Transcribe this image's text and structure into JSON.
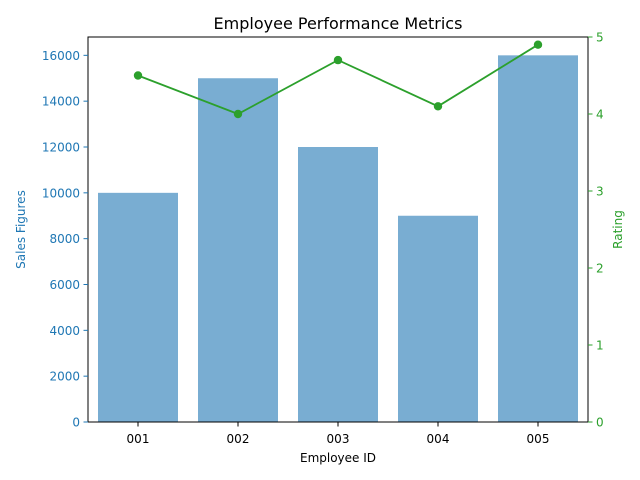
{
  "chart_data": {
    "type": "bar+line",
    "title": "Employee Performance Metrics",
    "xlabel": "Employee ID",
    "categories": [
      "001",
      "002",
      "003",
      "004",
      "005"
    ],
    "series": [
      {
        "name": "Sales Figures",
        "type": "bar",
        "axis": "left",
        "values": [
          10000,
          15000,
          12000,
          9000,
          16000
        ],
        "color": "#1f77b4",
        "opacity": 0.6
      },
      {
        "name": "Rating",
        "type": "line",
        "axis": "right",
        "values": [
          4.5,
          4.0,
          4.7,
          4.1,
          4.9
        ],
        "color": "#2ca02c",
        "marker": "circle"
      }
    ],
    "y_left": {
      "label": "Sales Figures",
      "range": [
        0,
        16800
      ],
      "ticks": [
        0,
        2000,
        4000,
        6000,
        8000,
        10000,
        12000,
        14000,
        16000
      ],
      "color": "#1f77b4"
    },
    "y_right": {
      "label": "Rating",
      "range": [
        0,
        5
      ],
      "ticks": [
        0,
        1,
        2,
        3,
        4,
        5
      ],
      "color": "#2ca02c"
    },
    "grid": false,
    "legend": "none"
  }
}
